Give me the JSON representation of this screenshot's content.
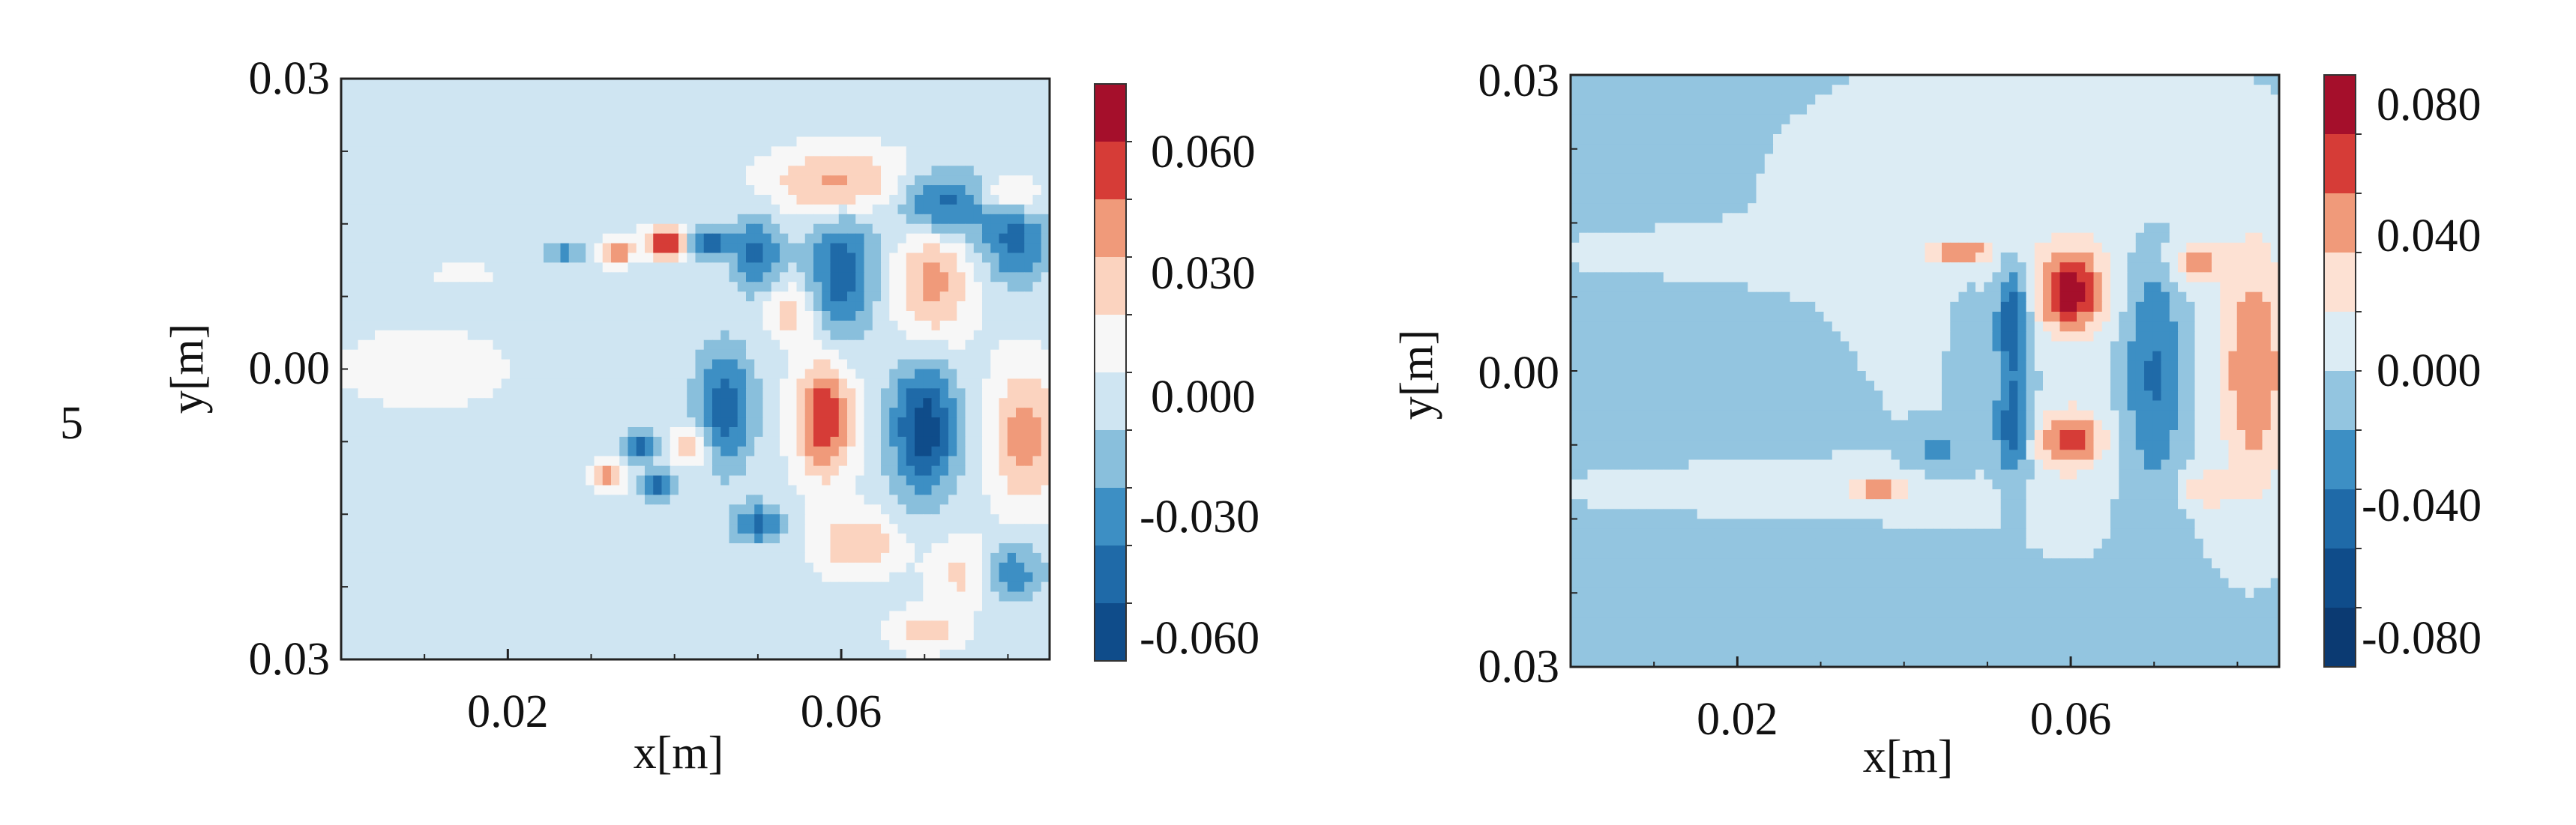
{
  "figure_label": "5",
  "palette": {
    "neg3": "#1c5a98",
    "neg2": "#2f86bf",
    "neg1": "#76b4d8",
    "neg0": "#cfe5f2",
    "pos0": "#fde1d3",
    "pos1": "#f4a582",
    "pos2": "#de5548",
    "pos3": "#b0172f",
    "zero": "#f7f7f7"
  },
  "chart_data": [
    {
      "type": "heatmap",
      "title": "",
      "xlabel": "x[m]",
      "ylabel": "y[m]",
      "xlim": [
        0.0,
        0.085
      ],
      "ylim": [
        -0.03,
        0.03
      ],
      "x_tick_labels": [
        "0.02",
        "0.06"
      ],
      "x_tick_values": [
        0.02,
        0.06
      ],
      "y_tick_labels": [
        "0.03",
        "0.00",
        "0.03"
      ],
      "y_tick_values": [
        0.03,
        0.0,
        -0.03
      ],
      "colorbar": {
        "tick_labels": [
          "0.060",
          "0.030",
          "0.000",
          "-0.030",
          "-0.060"
        ],
        "levels": [
          0.075,
          0.06,
          0.045,
          0.03,
          0.015,
          0.0,
          -0.015,
          -0.03,
          -0.045,
          -0.06,
          -0.075
        ],
        "colors": [
          "#a50f2b",
          "#d63c37",
          "#f09a7a",
          "#fbd3bf",
          "#f7f7f7",
          "#cfe5f2",
          "#89bfdc",
          "#3d8fc4",
          "#1f6aa8",
          "#0f4c8a"
        ]
      },
      "background_value": -0.005,
      "structures": [
        {
          "cx": 0.06,
          "cy": 0.019,
          "rx": 0.008,
          "ry": 0.0035,
          "v": 0.045
        },
        {
          "cx": 0.072,
          "cy": 0.017,
          "rx": 0.006,
          "ry": 0.0035,
          "v": -0.055
        },
        {
          "cx": 0.081,
          "cy": 0.013,
          "rx": 0.004,
          "ry": 0.004,
          "v": -0.045
        },
        {
          "cx": 0.06,
          "cy": 0.01,
          "rx": 0.004,
          "ry": 0.007,
          "v": -0.05
        },
        {
          "cx": 0.071,
          "cy": 0.009,
          "rx": 0.0045,
          "ry": 0.007,
          "v": 0.04
        },
        {
          "cx": 0.05,
          "cy": 0.012,
          "rx": 0.003,
          "ry": 0.004,
          "v": -0.045
        },
        {
          "cx": 0.039,
          "cy": 0.013,
          "rx": 0.0025,
          "ry": 0.0015,
          "v": 0.07
        },
        {
          "cx": 0.033,
          "cy": 0.012,
          "rx": 0.002,
          "ry": 0.0012,
          "v": 0.05
        },
        {
          "cx": 0.044,
          "cy": 0.013,
          "rx": 0.0025,
          "ry": 0.0015,
          "v": -0.055
        },
        {
          "cx": 0.027,
          "cy": 0.012,
          "rx": 0.0025,
          "ry": 0.001,
          "v": -0.035
        },
        {
          "cx": 0.054,
          "cy": 0.006,
          "rx": 0.003,
          "ry": 0.003,
          "v": 0.03
        },
        {
          "cx": 0.046,
          "cy": -0.004,
          "rx": 0.0035,
          "ry": 0.006,
          "v": -0.05
        },
        {
          "cx": 0.058,
          "cy": -0.005,
          "rx": 0.0035,
          "ry": 0.006,
          "v": 0.065
        },
        {
          "cx": 0.07,
          "cy": -0.006,
          "rx": 0.004,
          "ry": 0.007,
          "v": -0.065
        },
        {
          "cx": 0.082,
          "cy": -0.007,
          "rx": 0.004,
          "ry": 0.007,
          "v": 0.045
        },
        {
          "cx": 0.032,
          "cy": -0.011,
          "rx": 0.002,
          "ry": 0.0015,
          "v": 0.045
        },
        {
          "cx": 0.038,
          "cy": -0.012,
          "rx": 0.002,
          "ry": 0.0013,
          "v": -0.05
        },
        {
          "cx": 0.036,
          "cy": -0.008,
          "rx": 0.002,
          "ry": 0.0015,
          "v": -0.045
        },
        {
          "cx": 0.042,
          "cy": -0.008,
          "rx": 0.002,
          "ry": 0.002,
          "v": 0.04
        },
        {
          "cx": 0.05,
          "cy": -0.016,
          "rx": 0.003,
          "ry": 0.002,
          "v": -0.045
        },
        {
          "cx": 0.062,
          "cy": -0.018,
          "rx": 0.005,
          "ry": 0.003,
          "v": 0.035
        },
        {
          "cx": 0.075,
          "cy": -0.021,
          "rx": 0.004,
          "ry": 0.0035,
          "v": 0.03
        },
        {
          "cx": 0.08,
          "cy": -0.021,
          "rx": 0.004,
          "ry": 0.003,
          "v": -0.04
        },
        {
          "cx": 0.07,
          "cy": -0.027,
          "rx": 0.004,
          "ry": 0.002,
          "v": 0.03
        },
        {
          "cx": 0.08,
          "cy": 0.018,
          "rx": 0.004,
          "ry": 0.002,
          "v": 0.03
        },
        {
          "cx": 0.018,
          "cy": -0.012,
          "rx": 0.012,
          "ry": 0.002,
          "v": -0.005
        },
        {
          "cx": 0.015,
          "cy": 0.01,
          "rx": 0.012,
          "ry": 0.003,
          "v": 0.005
        },
        {
          "cx": 0.01,
          "cy": 0.0,
          "rx": 0.015,
          "ry": 0.006,
          "v": 0.008
        }
      ]
    },
    {
      "type": "heatmap",
      "title": "",
      "xlabel": "x[m]",
      "ylabel": "y[m]",
      "xlim": [
        0.0,
        0.085
      ],
      "ylim": [
        -0.03,
        0.03
      ],
      "x_tick_labels": [
        "0.02",
        "0.06"
      ],
      "x_tick_values": [
        0.02,
        0.06
      ],
      "y_tick_labels": [
        "0.03",
        "0.00",
        "0.03"
      ],
      "y_tick_values": [
        0.03,
        0.0,
        -0.03
      ],
      "colorbar": {
        "tick_labels": [
          "0.080",
          "0.040",
          "0.000",
          "-0.040",
          "-0.080"
        ],
        "levels": [
          0.1,
          0.08,
          0.06,
          0.04,
          0.02,
          0.0,
          -0.02,
          -0.04,
          -0.06,
          -0.08,
          -0.1
        ],
        "colors": [
          "#a50f2b",
          "#d63c37",
          "#f09a7a",
          "#fde1d3",
          "#dcecf4",
          "#93c5e0",
          "#3d8fc4",
          "#1f6aa8",
          "#0f4c8a",
          "#0b3a72"
        ]
      },
      "background_value": -0.008,
      "structures": [
        {
          "cx": 0.062,
          "cy": 0.0,
          "rx": 0.05,
          "ry": 0.04,
          "v": 0.01
        },
        {
          "cx": 0.055,
          "cy": 0.02,
          "rx": 0.03,
          "ry": 0.012,
          "v": 0.012
        },
        {
          "cx": 0.02,
          "cy": 0.012,
          "rx": 0.03,
          "ry": 0.0025,
          "v": 0.012
        },
        {
          "cx": 0.02,
          "cy": -0.012,
          "rx": 0.03,
          "ry": 0.0025,
          "v": 0.012
        },
        {
          "cx": 0.082,
          "cy": 0.0,
          "rx": 0.004,
          "ry": 0.012,
          "v": 0.06
        },
        {
          "cx": 0.075,
          "cy": 0.011,
          "rx": 0.003,
          "ry": 0.002,
          "v": 0.045
        },
        {
          "cx": 0.076,
          "cy": -0.012,
          "rx": 0.003,
          "ry": 0.002,
          "v": 0.035
        },
        {
          "cx": 0.07,
          "cy": 0.0,
          "rx": 0.0035,
          "ry": 0.012,
          "v": -0.045
        },
        {
          "cx": 0.06,
          "cy": 0.008,
          "rx": 0.004,
          "ry": 0.004,
          "v": 0.09
        },
        {
          "cx": 0.06,
          "cy": -0.007,
          "rx": 0.004,
          "ry": 0.003,
          "v": 0.07
        },
        {
          "cx": 0.053,
          "cy": 0.005,
          "rx": 0.002,
          "ry": 0.006,
          "v": -0.06
        },
        {
          "cx": 0.053,
          "cy": -0.006,
          "rx": 0.002,
          "ry": 0.005,
          "v": -0.055
        },
        {
          "cx": 0.047,
          "cy": 0.012,
          "rx": 0.003,
          "ry": 0.001,
          "v": 0.06
        },
        {
          "cx": 0.037,
          "cy": -0.012,
          "rx": 0.003,
          "ry": 0.001,
          "v": 0.06
        },
        {
          "cx": 0.048,
          "cy": 0.0,
          "rx": 0.002,
          "ry": 0.008,
          "v": -0.02
        },
        {
          "cx": 0.044,
          "cy": -0.008,
          "rx": 0.003,
          "ry": 0.002,
          "v": -0.03
        }
      ]
    }
  ]
}
